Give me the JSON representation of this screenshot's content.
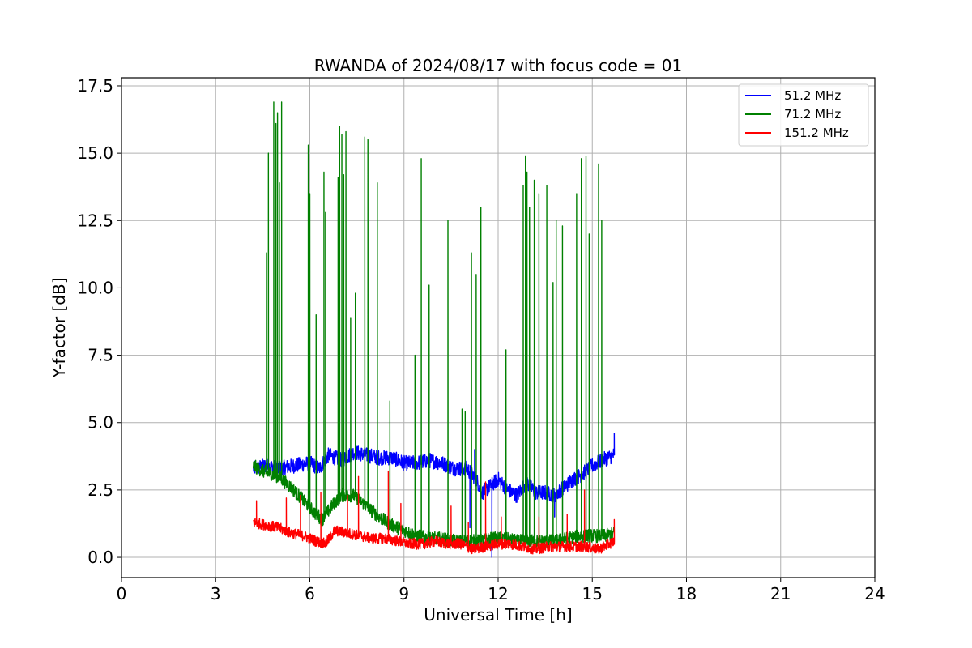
{
  "chart_data": {
    "type": "line",
    "title": "RWANDA of 2024/08/17 with focus code = 01",
    "xlabel": "Universal Time [h]",
    "ylabel": "Y-factor [dB]",
    "xlim": [
      0,
      24
    ],
    "ylim": [
      -0.75,
      17.8
    ],
    "xticks": [
      0,
      3,
      6,
      9,
      12,
      15,
      18,
      21,
      24
    ],
    "xtick_labels": [
      "0",
      "3",
      "6",
      "9",
      "12",
      "15",
      "18",
      "21",
      "24"
    ],
    "yticks": [
      0.0,
      2.5,
      5.0,
      7.5,
      10.0,
      12.5,
      15.0,
      17.5
    ],
    "ytick_labels": [
      "0.0",
      "2.5",
      "5.0",
      "7.5",
      "10.0",
      "12.5",
      "15.0",
      "17.5"
    ],
    "grid": true,
    "legend_position": "top-right",
    "series": [
      {
        "name": " 51.2 MHz",
        "color": "#0000ff",
        "x": [
          4.2,
          4.6,
          5.0,
          5.5,
          6.0,
          6.3,
          6.6,
          7.0,
          7.4,
          7.8,
          8.2,
          8.6,
          9.0,
          9.4,
          9.8,
          10.2,
          10.6,
          11.0,
          11.3,
          11.5,
          11.8,
          12.0,
          12.3,
          12.6,
          12.9,
          13.2,
          13.5,
          13.8,
          14.1,
          14.4,
          14.7,
          15.0,
          15.3,
          15.7
        ],
        "y": [
          3.3,
          3.4,
          3.3,
          3.4,
          3.5,
          3.3,
          3.8,
          3.6,
          3.9,
          3.8,
          3.7,
          3.7,
          3.5,
          3.5,
          3.6,
          3.5,
          3.3,
          3.3,
          2.9,
          2.4,
          2.7,
          2.9,
          2.5,
          2.3,
          2.8,
          2.4,
          2.4,
          2.3,
          2.6,
          2.9,
          3.1,
          3.4,
          3.6,
          3.8
        ],
        "noise": 0.28,
        "spikes": [
          [
            11.1,
            1.1
          ],
          [
            11.25,
            4.0
          ],
          [
            11.8,
            0.0
          ],
          [
            13.8,
            1.5
          ],
          [
            15.7,
            4.6
          ]
        ]
      },
      {
        "name": " 71.2 MHz",
        "color": "#008000",
        "x": [
          4.2,
          4.5,
          5.0,
          5.4,
          5.8,
          6.2,
          6.4,
          6.7,
          7.0,
          7.4,
          7.8,
          8.2,
          8.6,
          9.0,
          9.4,
          9.8,
          10.2,
          10.6,
          11.0,
          11.4,
          11.8,
          12.2,
          12.6,
          13.0,
          13.4,
          13.8,
          14.2,
          14.6,
          15.0,
          15.4,
          15.7
        ],
        "y": [
          3.4,
          3.2,
          3.0,
          2.6,
          2.1,
          1.6,
          1.4,
          1.9,
          2.3,
          2.3,
          1.9,
          1.5,
          1.2,
          1.0,
          0.8,
          0.7,
          0.7,
          0.6,
          0.6,
          0.6,
          0.7,
          0.7,
          0.6,
          0.6,
          0.6,
          0.6,
          0.7,
          0.8,
          0.8,
          0.8,
          0.9
        ],
        "noise": 0.25,
        "spikes": [
          [
            4.62,
            11.3
          ],
          [
            4.68,
            15.0
          ],
          [
            4.85,
            16.9
          ],
          [
            4.92,
            16.1
          ],
          [
            4.97,
            16.5
          ],
          [
            5.03,
            13.9
          ],
          [
            5.1,
            16.9
          ],
          [
            5.95,
            15.3
          ],
          [
            6.0,
            13.5
          ],
          [
            6.2,
            9.0
          ],
          [
            6.45,
            14.3
          ],
          [
            6.5,
            12.8
          ],
          [
            6.9,
            14.1
          ],
          [
            6.95,
            16.0
          ],
          [
            7.02,
            15.7
          ],
          [
            7.08,
            14.2
          ],
          [
            7.15,
            15.8
          ],
          [
            7.3,
            8.9
          ],
          [
            7.45,
            9.8
          ],
          [
            7.75,
            15.6
          ],
          [
            7.85,
            15.5
          ],
          [
            8.15,
            13.9
          ],
          [
            8.55,
            5.8
          ],
          [
            9.35,
            7.5
          ],
          [
            9.55,
            14.8
          ],
          [
            9.8,
            10.1
          ],
          [
            10.4,
            12.5
          ],
          [
            10.85,
            5.5
          ],
          [
            10.95,
            5.4
          ],
          [
            11.15,
            11.3
          ],
          [
            11.3,
            10.5
          ],
          [
            11.45,
            13.0
          ],
          [
            12.25,
            7.7
          ],
          [
            12.8,
            13.8
          ],
          [
            12.87,
            14.9
          ],
          [
            12.92,
            14.3
          ],
          [
            13.0,
            13.0
          ],
          [
            13.15,
            14.0
          ],
          [
            13.3,
            13.5
          ],
          [
            13.55,
            13.8
          ],
          [
            13.75,
            10.2
          ],
          [
            13.85,
            12.5
          ],
          [
            14.05,
            12.3
          ],
          [
            14.5,
            13.5
          ],
          [
            14.65,
            14.8
          ],
          [
            14.8,
            14.9
          ],
          [
            14.9,
            12.0
          ],
          [
            15.2,
            14.6
          ],
          [
            15.3,
            12.5
          ]
        ]
      },
      {
        "name": " 151.2 MHz",
        "color": "#ff0000",
        "x": [
          4.2,
          4.6,
          5.0,
          5.4,
          5.8,
          6.2,
          6.5,
          6.8,
          7.2,
          7.6,
          8.0,
          8.4,
          8.8,
          9.2,
          9.6,
          10.0,
          10.4,
          10.8,
          11.2,
          11.6,
          12.0,
          12.4,
          12.8,
          13.2,
          13.6,
          14.0,
          14.4,
          14.8,
          15.2,
          15.7
        ],
        "y": [
          1.3,
          1.2,
          1.1,
          0.9,
          0.8,
          0.6,
          0.5,
          1.0,
          0.9,
          0.8,
          0.7,
          0.7,
          0.6,
          0.5,
          0.5,
          0.6,
          0.5,
          0.5,
          0.3,
          0.4,
          0.5,
          0.5,
          0.4,
          0.3,
          0.4,
          0.4,
          0.4,
          0.4,
          0.3,
          0.6
        ],
        "noise": 0.2,
        "spikes": [
          [
            4.3,
            2.1
          ],
          [
            5.25,
            2.2
          ],
          [
            5.7,
            2.3
          ],
          [
            6.35,
            2.4
          ],
          [
            7.55,
            3.0
          ],
          [
            7.2,
            2.3
          ],
          [
            8.5,
            3.2
          ],
          [
            8.9,
            2.0
          ],
          [
            10.5,
            1.9
          ],
          [
            11.05,
            1.3
          ],
          [
            11.6,
            2.8
          ],
          [
            12.1,
            1.5
          ],
          [
            13.3,
            1.5
          ],
          [
            14.2,
            1.6
          ],
          [
            14.75,
            2.5
          ],
          [
            15.7,
            1.4
          ]
        ]
      }
    ]
  }
}
